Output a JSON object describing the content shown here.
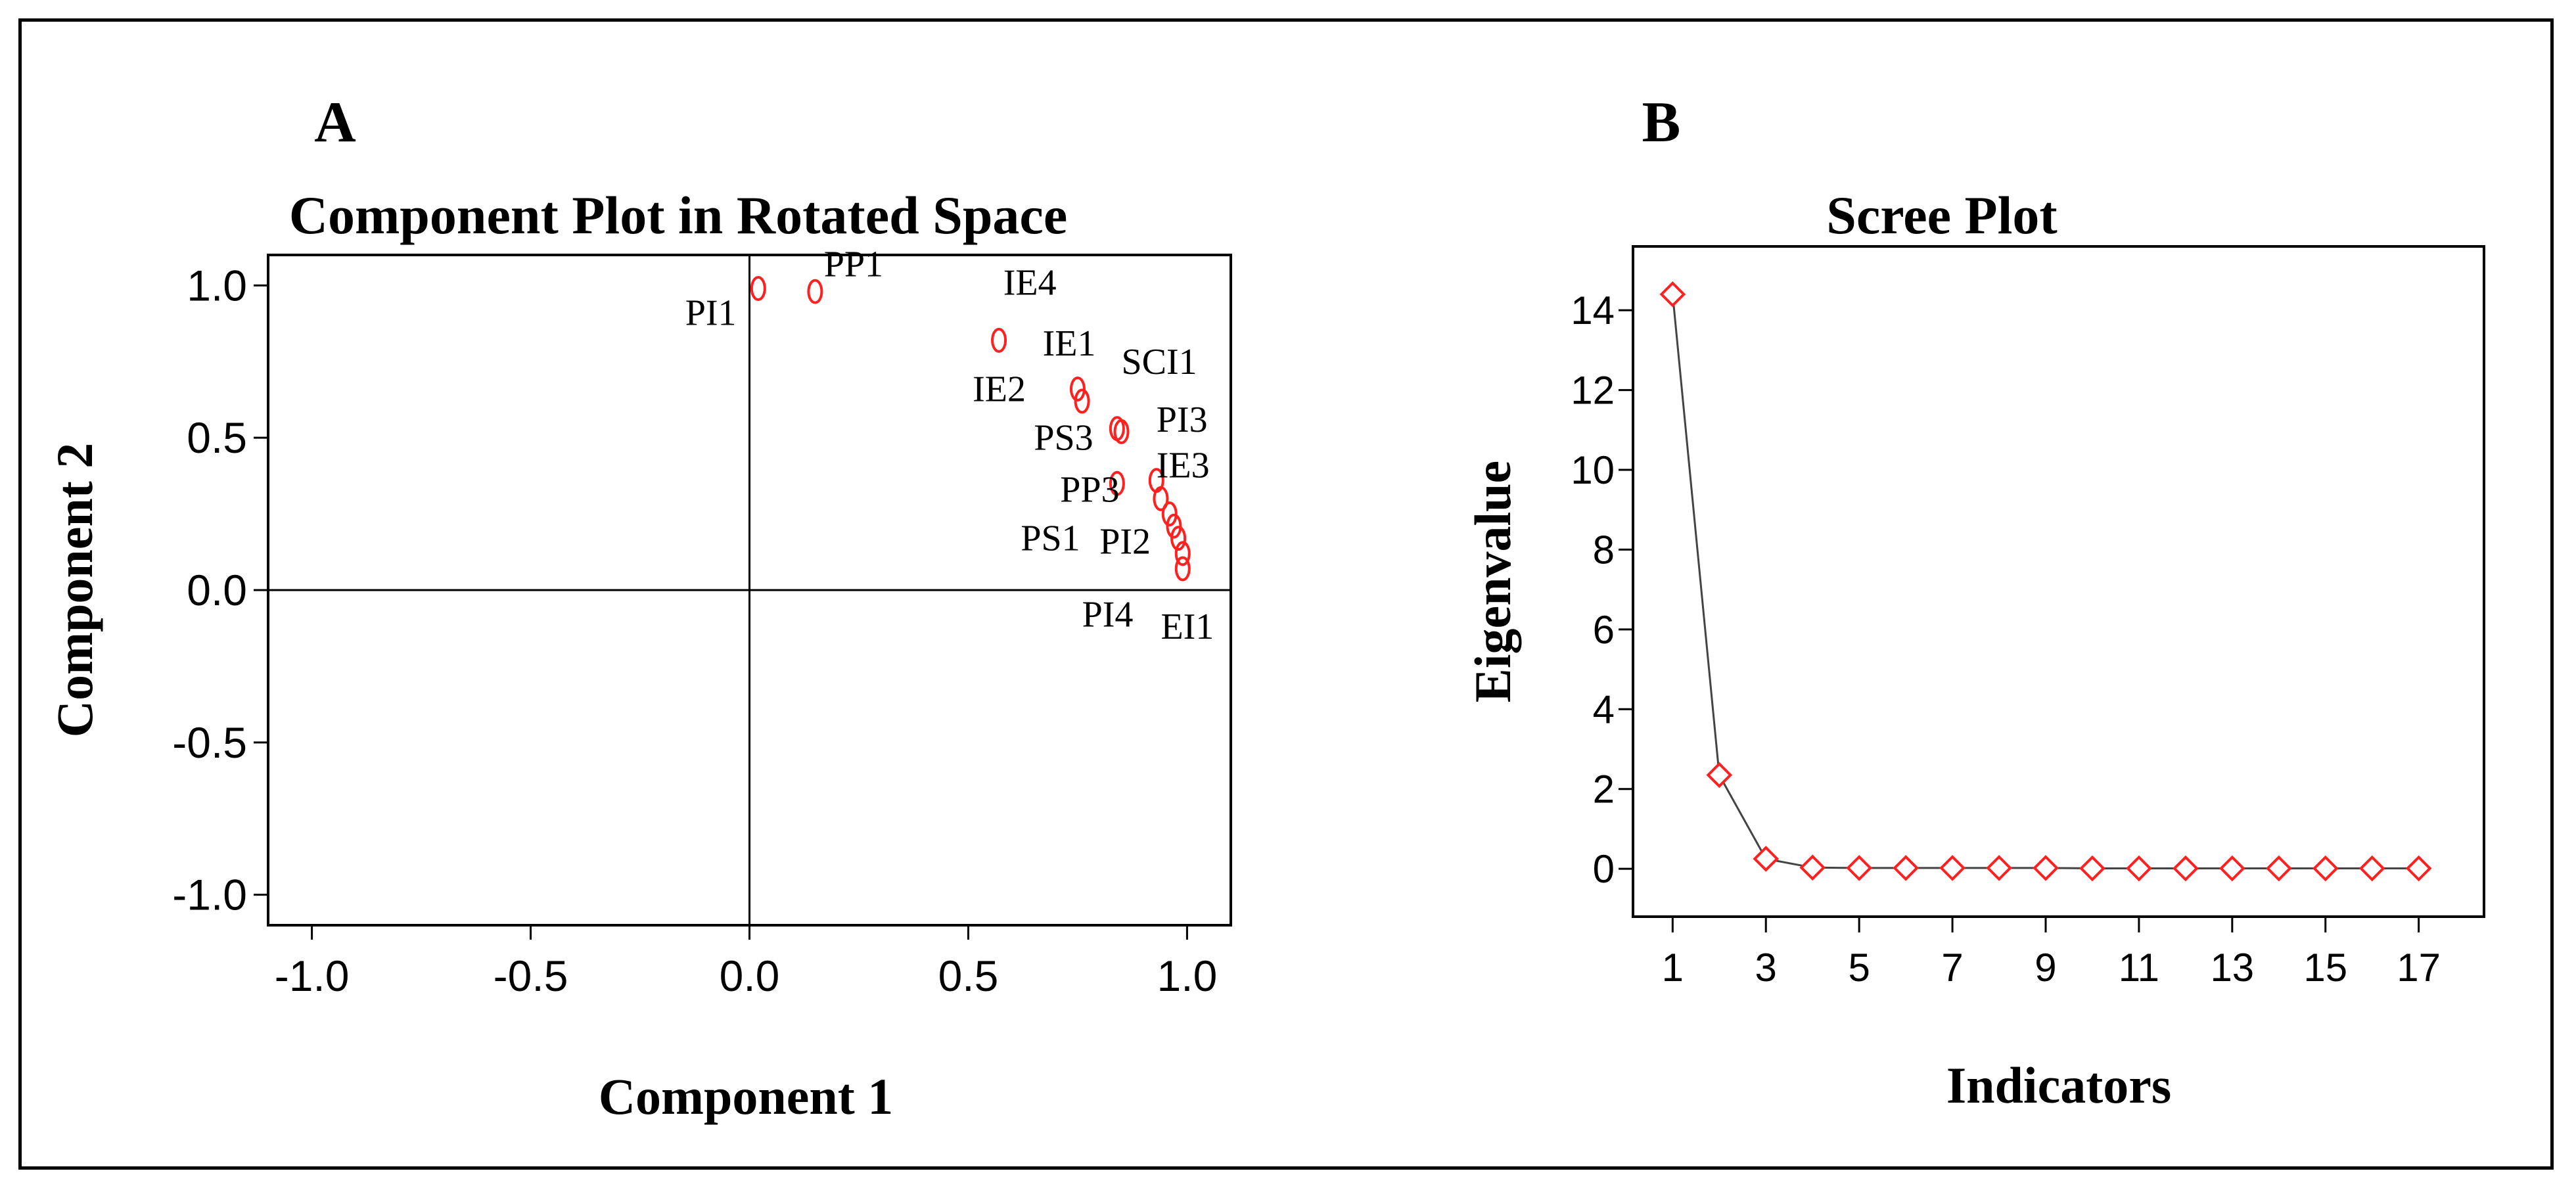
{
  "panels": {
    "a_letter": "A",
    "b_letter": "B"
  },
  "colors": {
    "marker": "#ff2020",
    "axis": "#000000",
    "line": "#444444",
    "plot_bg": "#ffffff"
  },
  "chart_data": [
    {
      "type": "scatter",
      "title": "Component Plot in Rotated Space",
      "xlabel": "Component 1",
      "ylabel": "Component 2",
      "xlim": [
        -1.1,
        1.1
      ],
      "ylim": [
        -1.1,
        1.1
      ],
      "xticks": [
        -1.0,
        -0.5,
        0.0,
        0.5,
        1.0
      ],
      "xtick_labels": [
        "-1.0",
        "-0.5",
        "0.0",
        "0.5",
        "1.0"
      ],
      "yticks": [
        -1.0,
        -0.5,
        0.0,
        0.5,
        1.0
      ],
      "ytick_labels": [
        "-1.0",
        "-0.5",
        "0.0",
        "0.5",
        "1.0"
      ],
      "reference_lines": {
        "x": 0,
        "y": 0
      },
      "points": [
        {
          "x": 0.02,
          "y": 0.99
        },
        {
          "x": 0.15,
          "y": 0.98
        },
        {
          "x": 0.57,
          "y": 0.82
        },
        {
          "x": 0.75,
          "y": 0.66
        },
        {
          "x": 0.76,
          "y": 0.62
        },
        {
          "x": 0.84,
          "y": 0.53
        },
        {
          "x": 0.85,
          "y": 0.52
        },
        {
          "x": 0.84,
          "y": 0.35
        },
        {
          "x": 0.93,
          "y": 0.36
        },
        {
          "x": 0.94,
          "y": 0.3
        },
        {
          "x": 0.96,
          "y": 0.25
        },
        {
          "x": 0.97,
          "y": 0.21
        },
        {
          "x": 0.98,
          "y": 0.17
        },
        {
          "x": 0.99,
          "y": 0.12
        },
        {
          "x": 0.99,
          "y": 0.07
        }
      ],
      "labels": [
        {
          "text": "PI1",
          "x": -0.03,
          "y": 0.87,
          "anchor": "end"
        },
        {
          "text": "PP1",
          "x": 0.17,
          "y": 1.03,
          "anchor": "start"
        },
        {
          "text": "IE4",
          "x": 0.58,
          "y": 0.97,
          "anchor": "start"
        },
        {
          "text": "IE1",
          "x": 0.67,
          "y": 0.77,
          "anchor": "start"
        },
        {
          "text": "SCI1",
          "x": 0.85,
          "y": 0.71,
          "anchor": "start"
        },
        {
          "text": "IE2",
          "x": 0.51,
          "y": 0.62,
          "anchor": "start"
        },
        {
          "text": "PI3",
          "x": 0.93,
          "y": 0.52,
          "anchor": "start"
        },
        {
          "text": "PS3",
          "x": 0.65,
          "y": 0.46,
          "anchor": "start"
        },
        {
          "text": "IE3",
          "x": 0.93,
          "y": 0.37,
          "anchor": "start"
        },
        {
          "text": "PP3",
          "x": 0.71,
          "y": 0.29,
          "anchor": "start"
        },
        {
          "text": "PS1",
          "x": 0.62,
          "y": 0.13,
          "anchor": "start"
        },
        {
          "text": "PI2",
          "x": 0.8,
          "y": 0.12,
          "anchor": "start"
        },
        {
          "text": "PI4",
          "x": 0.76,
          "y": -0.12,
          "anchor": "start"
        },
        {
          "text": "EI1",
          "x": 0.94,
          "y": -0.16,
          "anchor": "start"
        }
      ]
    },
    {
      "type": "line",
      "title": "Scree Plot",
      "xlabel": "Indicators",
      "ylabel": "Eigenvalue",
      "x": [
        1,
        2,
        3,
        4,
        5,
        6,
        7,
        8,
        9,
        10,
        11,
        12,
        13,
        14,
        15,
        16,
        17
      ],
      "values": [
        14.4,
        2.35,
        0.25,
        0.03,
        0.02,
        0.02,
        0.02,
        0.02,
        0.02,
        0.01,
        0.01,
        0.01,
        0.01,
        0.01,
        0.01,
        0.01,
        0.01
      ],
      "xlim": [
        0.15,
        18.4
      ],
      "ylim": [
        -1.2,
        15.6
      ],
      "xticks": [
        1,
        3,
        5,
        7,
        9,
        11,
        13,
        15,
        17
      ],
      "xtick_labels": [
        "1",
        "3",
        "5",
        "7",
        "9",
        "11",
        "13",
        "15",
        "17"
      ],
      "yticks": [
        0,
        2,
        4,
        6,
        8,
        10,
        12,
        14
      ],
      "ytick_labels": [
        "0",
        "2",
        "4",
        "6",
        "8",
        "10",
        "12",
        "14"
      ],
      "marker": "diamond"
    }
  ]
}
